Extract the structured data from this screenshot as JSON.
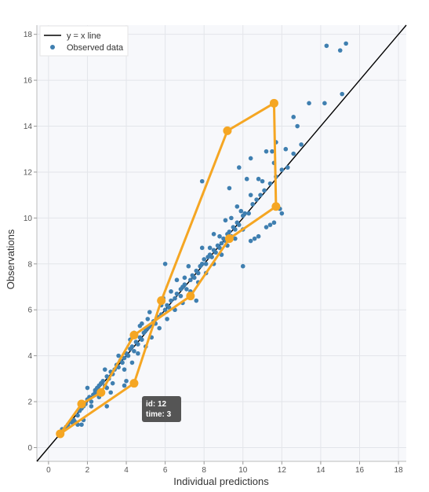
{
  "chart_data": {
    "type": "scatter",
    "xlabel": "Individual predictions",
    "ylabel": "Observations",
    "xlim": [
      -0.6,
      18.4
    ],
    "ylim": [
      -0.6,
      18.4
    ],
    "x_ticks": [
      0,
      2,
      4,
      6,
      8,
      10,
      12,
      14,
      16,
      18
    ],
    "y_ticks": [
      0,
      2,
      4,
      6,
      8,
      10,
      12,
      14,
      16,
      18
    ],
    "grid": true,
    "legend_position": "top-left",
    "colors": {
      "identity_line": "#000000",
      "observed": "#3f7fb0",
      "highlight": "#f5a623",
      "tooltip_bg": "#555555",
      "plot_bg": "#f7f8fb",
      "grid": "#e3e5ea"
    },
    "series": [
      {
        "name": "y = x line",
        "type": "line",
        "x": [
          -0.6,
          18.4
        ],
        "y": [
          -0.6,
          18.4
        ]
      },
      {
        "name": "Observed data",
        "type": "scatter",
        "points": [
          [
            0.6,
            0.6
          ],
          [
            0.7,
            0.8
          ],
          [
            0.9,
            0.9
          ],
          [
            1.0,
            1.0
          ],
          [
            1.2,
            1.1
          ],
          [
            1.3,
            1.2
          ],
          [
            1.5,
            1.4
          ],
          [
            1.6,
            1.6
          ],
          [
            1.7,
            1.7
          ],
          [
            1.8,
            1.8
          ],
          [
            1.9,
            1.9
          ],
          [
            2.0,
            2.1
          ],
          [
            2.1,
            2.2
          ],
          [
            2.2,
            2.0
          ],
          [
            2.3,
            2.3
          ],
          [
            2.4,
            2.5
          ],
          [
            2.5,
            2.6
          ],
          [
            2.6,
            2.7
          ],
          [
            2.7,
            2.8
          ],
          [
            2.8,
            2.9
          ],
          [
            2.9,
            2.7
          ],
          [
            3.0,
            3.1
          ],
          [
            3.1,
            3.0
          ],
          [
            3.2,
            3.3
          ],
          [
            3.3,
            3.2
          ],
          [
            3.4,
            3.4
          ],
          [
            3.5,
            3.6
          ],
          [
            3.6,
            3.5
          ],
          [
            3.7,
            3.8
          ],
          [
            3.8,
            3.7
          ],
          [
            3.9,
            3.9
          ],
          [
            4.0,
            4.1
          ],
          [
            4.1,
            4.0
          ],
          [
            4.2,
            4.3
          ],
          [
            4.3,
            4.4
          ],
          [
            4.4,
            4.2
          ],
          [
            4.5,
            4.6
          ],
          [
            4.6,
            4.5
          ],
          [
            4.7,
            4.8
          ],
          [
            4.8,
            4.7
          ],
          [
            4.9,
            5.0
          ],
          [
            5.0,
            5.1
          ],
          [
            5.1,
            5.2
          ],
          [
            5.2,
            5.3
          ],
          [
            5.4,
            5.5
          ],
          [
            5.5,
            5.4
          ],
          [
            5.6,
            5.7
          ],
          [
            5.8,
            5.8
          ],
          [
            6.0,
            6.0
          ],
          [
            6.1,
            6.2
          ],
          [
            6.2,
            6.1
          ],
          [
            6.3,
            6.4
          ],
          [
            6.5,
            6.5
          ],
          [
            6.6,
            6.7
          ],
          [
            6.8,
            6.9
          ],
          [
            6.9,
            7.0
          ],
          [
            7.0,
            7.1
          ],
          [
            7.1,
            6.9
          ],
          [
            7.3,
            7.3
          ],
          [
            7.4,
            7.5
          ],
          [
            7.5,
            7.4
          ],
          [
            7.6,
            7.7
          ],
          [
            7.7,
            7.6
          ],
          [
            7.8,
            7.9
          ],
          [
            7.9,
            8.0
          ],
          [
            8.0,
            8.2
          ],
          [
            8.1,
            8.0
          ],
          [
            8.2,
            8.3
          ],
          [
            8.3,
            8.4
          ],
          [
            8.4,
            8.3
          ],
          [
            8.5,
            8.6
          ],
          [
            8.6,
            8.5
          ],
          [
            8.7,
            8.8
          ],
          [
            8.8,
            8.7
          ],
          [
            8.9,
            8.9
          ],
          [
            9.0,
            9.1
          ],
          [
            9.1,
            9.0
          ],
          [
            9.2,
            9.3
          ],
          [
            9.3,
            9.4
          ],
          [
            9.4,
            9.2
          ],
          [
            9.5,
            9.6
          ],
          [
            9.6,
            9.5
          ],
          [
            9.7,
            9.8
          ],
          [
            9.8,
            9.7
          ],
          [
            10.0,
            10.1
          ],
          [
            10.1,
            10.2
          ],
          [
            10.3,
            10.2
          ],
          [
            10.5,
            10.6
          ],
          [
            10.7,
            10.8
          ],
          [
            10.9,
            11.0
          ],
          [
            11.1,
            11.2
          ],
          [
            11.4,
            11.5
          ],
          [
            11.7,
            11.8
          ],
          [
            12.0,
            12.1
          ],
          [
            12.3,
            12.2
          ],
          [
            12.6,
            12.8
          ],
          [
            13.0,
            13.2
          ],
          [
            0.7,
            0.6
          ],
          [
            1.4,
            1.1
          ],
          [
            1.7,
            1.0
          ],
          [
            2.2,
            1.8
          ],
          [
            2.6,
            2.2
          ],
          [
            3.0,
            2.6
          ],
          [
            3.3,
            2.8
          ],
          [
            3.9,
            3.4
          ],
          [
            4.3,
            3.7
          ],
          [
            4.6,
            4.1
          ],
          [
            5.0,
            4.4
          ],
          [
            5.3,
            4.8
          ],
          [
            5.7,
            5.2
          ],
          [
            6.1,
            5.6
          ],
          [
            6.5,
            6.0
          ],
          [
            6.9,
            6.3
          ],
          [
            7.3,
            6.8
          ],
          [
            7.7,
            7.2
          ],
          [
            8.1,
            7.6
          ],
          [
            8.5,
            8.0
          ],
          [
            8.9,
            8.4
          ],
          [
            9.2,
            8.8
          ],
          [
            9.6,
            9.1
          ],
          [
            10.0,
            9.5
          ],
          [
            10.4,
            9.0
          ],
          [
            10.8,
            9.2
          ],
          [
            11.2,
            9.6
          ],
          [
            11.6,
            9.8
          ],
          [
            12.0,
            10.2
          ],
          [
            3.6,
            4.0
          ],
          [
            4.2,
            4.7
          ],
          [
            4.8,
            5.4
          ],
          [
            5.2,
            5.9
          ],
          [
            5.9,
            6.5
          ],
          [
            6.6,
            7.3
          ],
          [
            7.2,
            7.9
          ],
          [
            7.9,
            8.7
          ],
          [
            8.5,
            9.3
          ],
          [
            9.1,
            9.9
          ],
          [
            9.7,
            10.5
          ],
          [
            10.4,
            11.0
          ],
          [
            11.0,
            11.6
          ],
          [
            11.6,
            12.4
          ],
          [
            12.2,
            13.0
          ],
          [
            3.2,
            2.4
          ],
          [
            4.0,
            2.9
          ],
          [
            3.9,
            2.7
          ],
          [
            1.8,
            1.2
          ],
          [
            6.0,
            8.0
          ],
          [
            7.9,
            11.6
          ],
          [
            9.3,
            11.3
          ],
          [
            9.8,
            12.2
          ],
          [
            10.4,
            12.6
          ],
          [
            11.2,
            12.9
          ],
          [
            11.5,
            12.9
          ],
          [
            11.7,
            13.3
          ],
          [
            12.6,
            14.4
          ],
          [
            12.8,
            14.0
          ],
          [
            13.4,
            15.0
          ],
          [
            14.2,
            15.0
          ],
          [
            14.3,
            17.5
          ],
          [
            15.0,
            17.3
          ],
          [
            15.3,
            17.6
          ],
          [
            15.1,
            15.4
          ],
          [
            10.0,
            7.9
          ],
          [
            10.6,
            9.1
          ],
          [
            11.4,
            9.7
          ],
          [
            11.9,
            10.4
          ],
          [
            9.9,
            10.3
          ],
          [
            10.2,
            11.7
          ],
          [
            10.8,
            11.7
          ],
          [
            6.8,
            6.6
          ],
          [
            7.6,
            6.4
          ],
          [
            3.0,
            1.8
          ],
          [
            1.5,
            1.0
          ],
          [
            2.4,
            2.4
          ],
          [
            5.1,
            5.6
          ],
          [
            5.8,
            6.2
          ],
          [
            6.3,
            6.8
          ],
          [
            7.0,
            7.4
          ],
          [
            8.3,
            8.7
          ],
          [
            8.8,
            9.2
          ],
          [
            9.4,
            10.0
          ],
          [
            4.4,
            5.0
          ],
          [
            4.7,
            5.3
          ],
          [
            2.0,
            2.6
          ],
          [
            2.9,
            3.4
          ]
        ]
      },
      {
        "type": "line",
        "highlighted": true,
        "points": [
          [
            0.6,
            0.6
          ],
          [
            1.7,
            1.9
          ],
          [
            2.7,
            2.4
          ],
          [
            4.4,
            4.9
          ],
          [
            7.3,
            6.6
          ],
          [
            9.3,
            9.1
          ],
          [
            11.7,
            10.5
          ],
          [
            11.6,
            15.0
          ],
          [
            9.2,
            13.8
          ],
          [
            5.8,
            6.4
          ],
          [
            4.4,
            2.8
          ],
          [
            0.6,
            0.6
          ]
        ]
      }
    ],
    "tooltip": {
      "line1": "id: 12",
      "line2": "time: 3"
    }
  }
}
